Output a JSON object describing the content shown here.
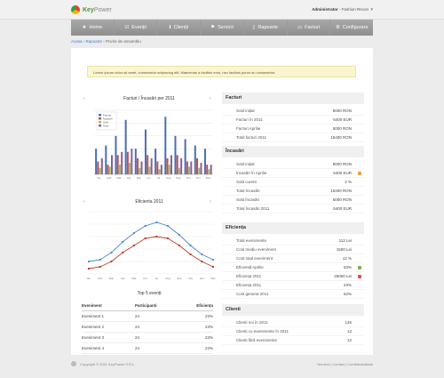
{
  "app": {
    "logo_main": "Key",
    "logo_sub": "Power"
  },
  "user": {
    "name": "Administrator",
    "role": "- Fashion Recon"
  },
  "nav": [
    {
      "label": "Home",
      "icon": "star-icon",
      "glyph": "★"
    },
    {
      "label": "Evenții",
      "icon": "check-icon",
      "glyph": "☑"
    },
    {
      "label": "Clienții",
      "icon": "info-icon",
      "glyph": "ℹ"
    },
    {
      "label": "Servicii",
      "icon": "flag-icon",
      "glyph": "⚑"
    },
    {
      "label": "Rapoarte",
      "icon": "document-icon",
      "glyph": "▯"
    },
    {
      "label": "Facturi",
      "icon": "invoice-icon",
      "glyph": "▭"
    },
    {
      "label": "Configurare",
      "icon": "gear-icon",
      "glyph": "⚙"
    }
  ],
  "breadcrumb": {
    "home": "Acasa",
    "section": "Rapoarte",
    "current": "Privire de ansamblu"
  },
  "notice": "Lorem ipsum dolor sit amet, consectetur adipiscing elit. Maecenas a facilisis eros, nec facilisis purus eu consectetur.",
  "charts": {
    "bar_title": "Facturi / Încasări per 2011",
    "line_title": "Eficienta 2011"
  },
  "chart_data": [
    {
      "type": "bar",
      "title": "Facturi / Încasări per 2011",
      "categories": [
        "Ian",
        "Feb",
        "Mar",
        "Apr",
        "Mai",
        "Iun",
        "Iul",
        "Aug",
        "Sep",
        "Oct",
        "Noi",
        "Dec"
      ],
      "series": [
        {
          "name": "Facturi",
          "color": "#4a6fb5",
          "values": [
            40,
            45,
            60,
            85,
            40,
            70,
            40,
            90,
            60,
            55,
            45,
            40
          ]
        },
        {
          "name": "Încasări",
          "color": "#c0504d",
          "values": [
            20,
            15,
            30,
            35,
            25,
            30,
            20,
            25,
            30,
            20,
            25,
            15
          ]
        },
        {
          "name": "Sold",
          "color": "#9bbb59",
          "values": [
            10,
            12,
            15,
            18,
            10,
            12,
            8,
            15,
            10,
            12,
            10,
            8
          ]
        },
        {
          "name": "Total",
          "color": "#8064a2",
          "values": [
            25,
            30,
            35,
            40,
            20,
            25,
            15,
            30,
            25,
            20,
            18,
            15
          ]
        }
      ],
      "ylim": [
        0,
        100
      ],
      "legend": "top-left"
    },
    {
      "type": "line",
      "title": "Eficienta 2011",
      "categories": [
        "Ian",
        "Feb",
        "Mar",
        "Apr",
        "Mai",
        "Iun",
        "Iul",
        "Aug",
        "Sep",
        "Oct",
        "Noi",
        "Dec"
      ],
      "series": [
        {
          "color": "#4a86c8",
          "values": [
            -3,
            -2,
            2,
            8,
            13,
            17,
            19,
            17,
            12,
            6,
            1,
            -2
          ]
        },
        {
          "color": "#c0392b",
          "values": [
            -7,
            -6,
            -3,
            2,
            6,
            10,
            11,
            10,
            6,
            1,
            -3,
            -6
          ]
        }
      ],
      "ylim": [
        -10,
        25
      ]
    }
  ],
  "table": {
    "title": "Top 5 evenți",
    "headers": [
      "Eveniment",
      "Participanti",
      "Eficiența"
    ],
    "rows": [
      [
        "Eveniment 1",
        "24",
        "23%"
      ],
      [
        "Eveniment 2",
        "24",
        "23%"
      ],
      [
        "Eveniment 3",
        "24",
        "23%"
      ],
      [
        "Eveniment 4",
        "24",
        "23%"
      ]
    ]
  },
  "panels": [
    {
      "title": "Facturi",
      "rows": [
        {
          "label": "Sold inițial",
          "value": "5000 RON"
        },
        {
          "label": "Facturi în 2011",
          "value": "5400 EUR"
        },
        {
          "label": "Facturi Aprilie",
          "value": "5000 RON"
        },
        {
          "label": "Total facturi 2011",
          "value": "15400 RON"
        }
      ]
    },
    {
      "title": "Încasări",
      "rows": [
        {
          "label": "Sold inițial",
          "value": "5000 RON"
        },
        {
          "label": "Încasări în Aprilie",
          "value": "5400 EUR",
          "flag": "#e8a33c"
        },
        {
          "label": "Sold curent",
          "value": "2 %"
        },
        {
          "label": "Total încasări",
          "value": "15400 RON"
        },
        {
          "label": "Sold încasări",
          "value": "5000 RON"
        },
        {
          "label": "Total încasări 2011",
          "value": "5400 EUR"
        }
      ]
    },
    {
      "title": "Eficiența",
      "rows": [
        {
          "label": "Total evenimente",
          "value": "112 Lei"
        },
        {
          "label": "Cost mediu eveniment",
          "value": "1500 Lei"
        },
        {
          "label": "Cost total eveniment",
          "value": "12 %"
        },
        {
          "label": "Eficiență Aprilie",
          "value": "53%",
          "flag": "#7ab648"
        },
        {
          "label": "Eficiența 2011",
          "value": "25000 Lei",
          "flag": "#d9534f"
        },
        {
          "label": "Eficiența 2011",
          "value": "23%"
        },
        {
          "label": "Cost general 2011",
          "value": "52%"
        }
      ]
    },
    {
      "title": "Clienti",
      "rows": [
        {
          "label": "Clienti noi în 2011",
          "value": "126"
        },
        {
          "label": "Clienti cu evenimente în 2011",
          "value": "12"
        },
        {
          "label": "Clienti fără evenimente",
          "value": "12"
        }
      ]
    }
  ],
  "footer": {
    "left": "Copyright © 2011 KeyPower S.R.L.",
    "right": "Termeni | Contact | Confidențialitate"
  }
}
